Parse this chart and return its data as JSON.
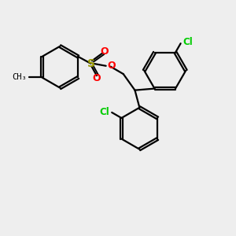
{
  "bg_color": "#eeeeee",
  "line_color": "#000000",
  "S_color": "#999900",
  "O_color": "#ff0000",
  "Cl_color": "#00cc00",
  "line_width": 1.6,
  "figsize": [
    3.0,
    3.0
  ],
  "dpi": 100,
  "xlim": [
    0,
    10
  ],
  "ylim": [
    0,
    10
  ]
}
